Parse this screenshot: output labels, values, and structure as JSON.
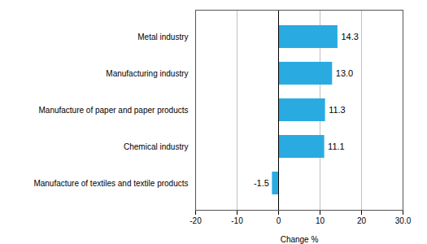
{
  "chart_data": {
    "type": "bar",
    "orientation": "horizontal",
    "categories": [
      "Manufacture of textiles and textile products",
      "Chemical industry",
      "Manufacture of paper and paper products",
      "Manufacturing industry",
      "Metal industry"
    ],
    "values": [
      -1.5,
      11.1,
      11.3,
      13.0,
      14.3
    ],
    "value_labels": [
      "-1.5",
      "11.1",
      "11.3",
      "13.0",
      "14.3"
    ],
    "data_labels": true,
    "color": "#29abe2",
    "xlabel": "Change %",
    "xlim": [
      -20,
      30
    ],
    "xticks": [
      -20,
      -10,
      0,
      10,
      20,
      {
        "value": 30,
        "label": "30.0"
      }
    ],
    "grid": true
  }
}
